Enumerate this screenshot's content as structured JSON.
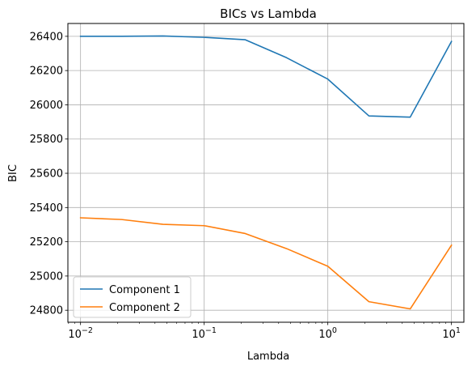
{
  "chart_data": {
    "type": "line",
    "title": "BICs vs Lambda",
    "xlabel": "Lambda",
    "ylabel": "BIC",
    "xscale": "log",
    "xlim": [
      0.0079,
      12.6
    ],
    "ylim": [
      24730,
      26475
    ],
    "grid": true,
    "legend_position": "lower-left",
    "x": [
      0.01,
      0.0215,
      0.0464,
      0.1,
      0.215,
      0.464,
      1.0,
      2.15,
      4.64,
      10.0
    ],
    "x_ticks": [
      {
        "value": 0.01,
        "base": "10",
        "exp": "−2"
      },
      {
        "value": 0.1,
        "base": "10",
        "exp": "−1"
      },
      {
        "value": 1,
        "base": "10",
        "exp": "0"
      },
      {
        "value": 10,
        "base": "10",
        "exp": "1"
      }
    ],
    "y_ticks": [
      24800,
      25000,
      25200,
      25400,
      25600,
      25800,
      26000,
      26200,
      26400
    ],
    "series": [
      {
        "name": "Component 1",
        "color": "#1f77b4",
        "values": [
          26400,
          26400,
          26402,
          26394,
          26380,
          26275,
          26150,
          25935,
          25928,
          26370
        ]
      },
      {
        "name": "Component 2",
        "color": "#ff7f0e",
        "values": [
          25340,
          25330,
          25302,
          25294,
          25248,
          25160,
          25057,
          24850,
          24808,
          25180
        ]
      }
    ]
  }
}
